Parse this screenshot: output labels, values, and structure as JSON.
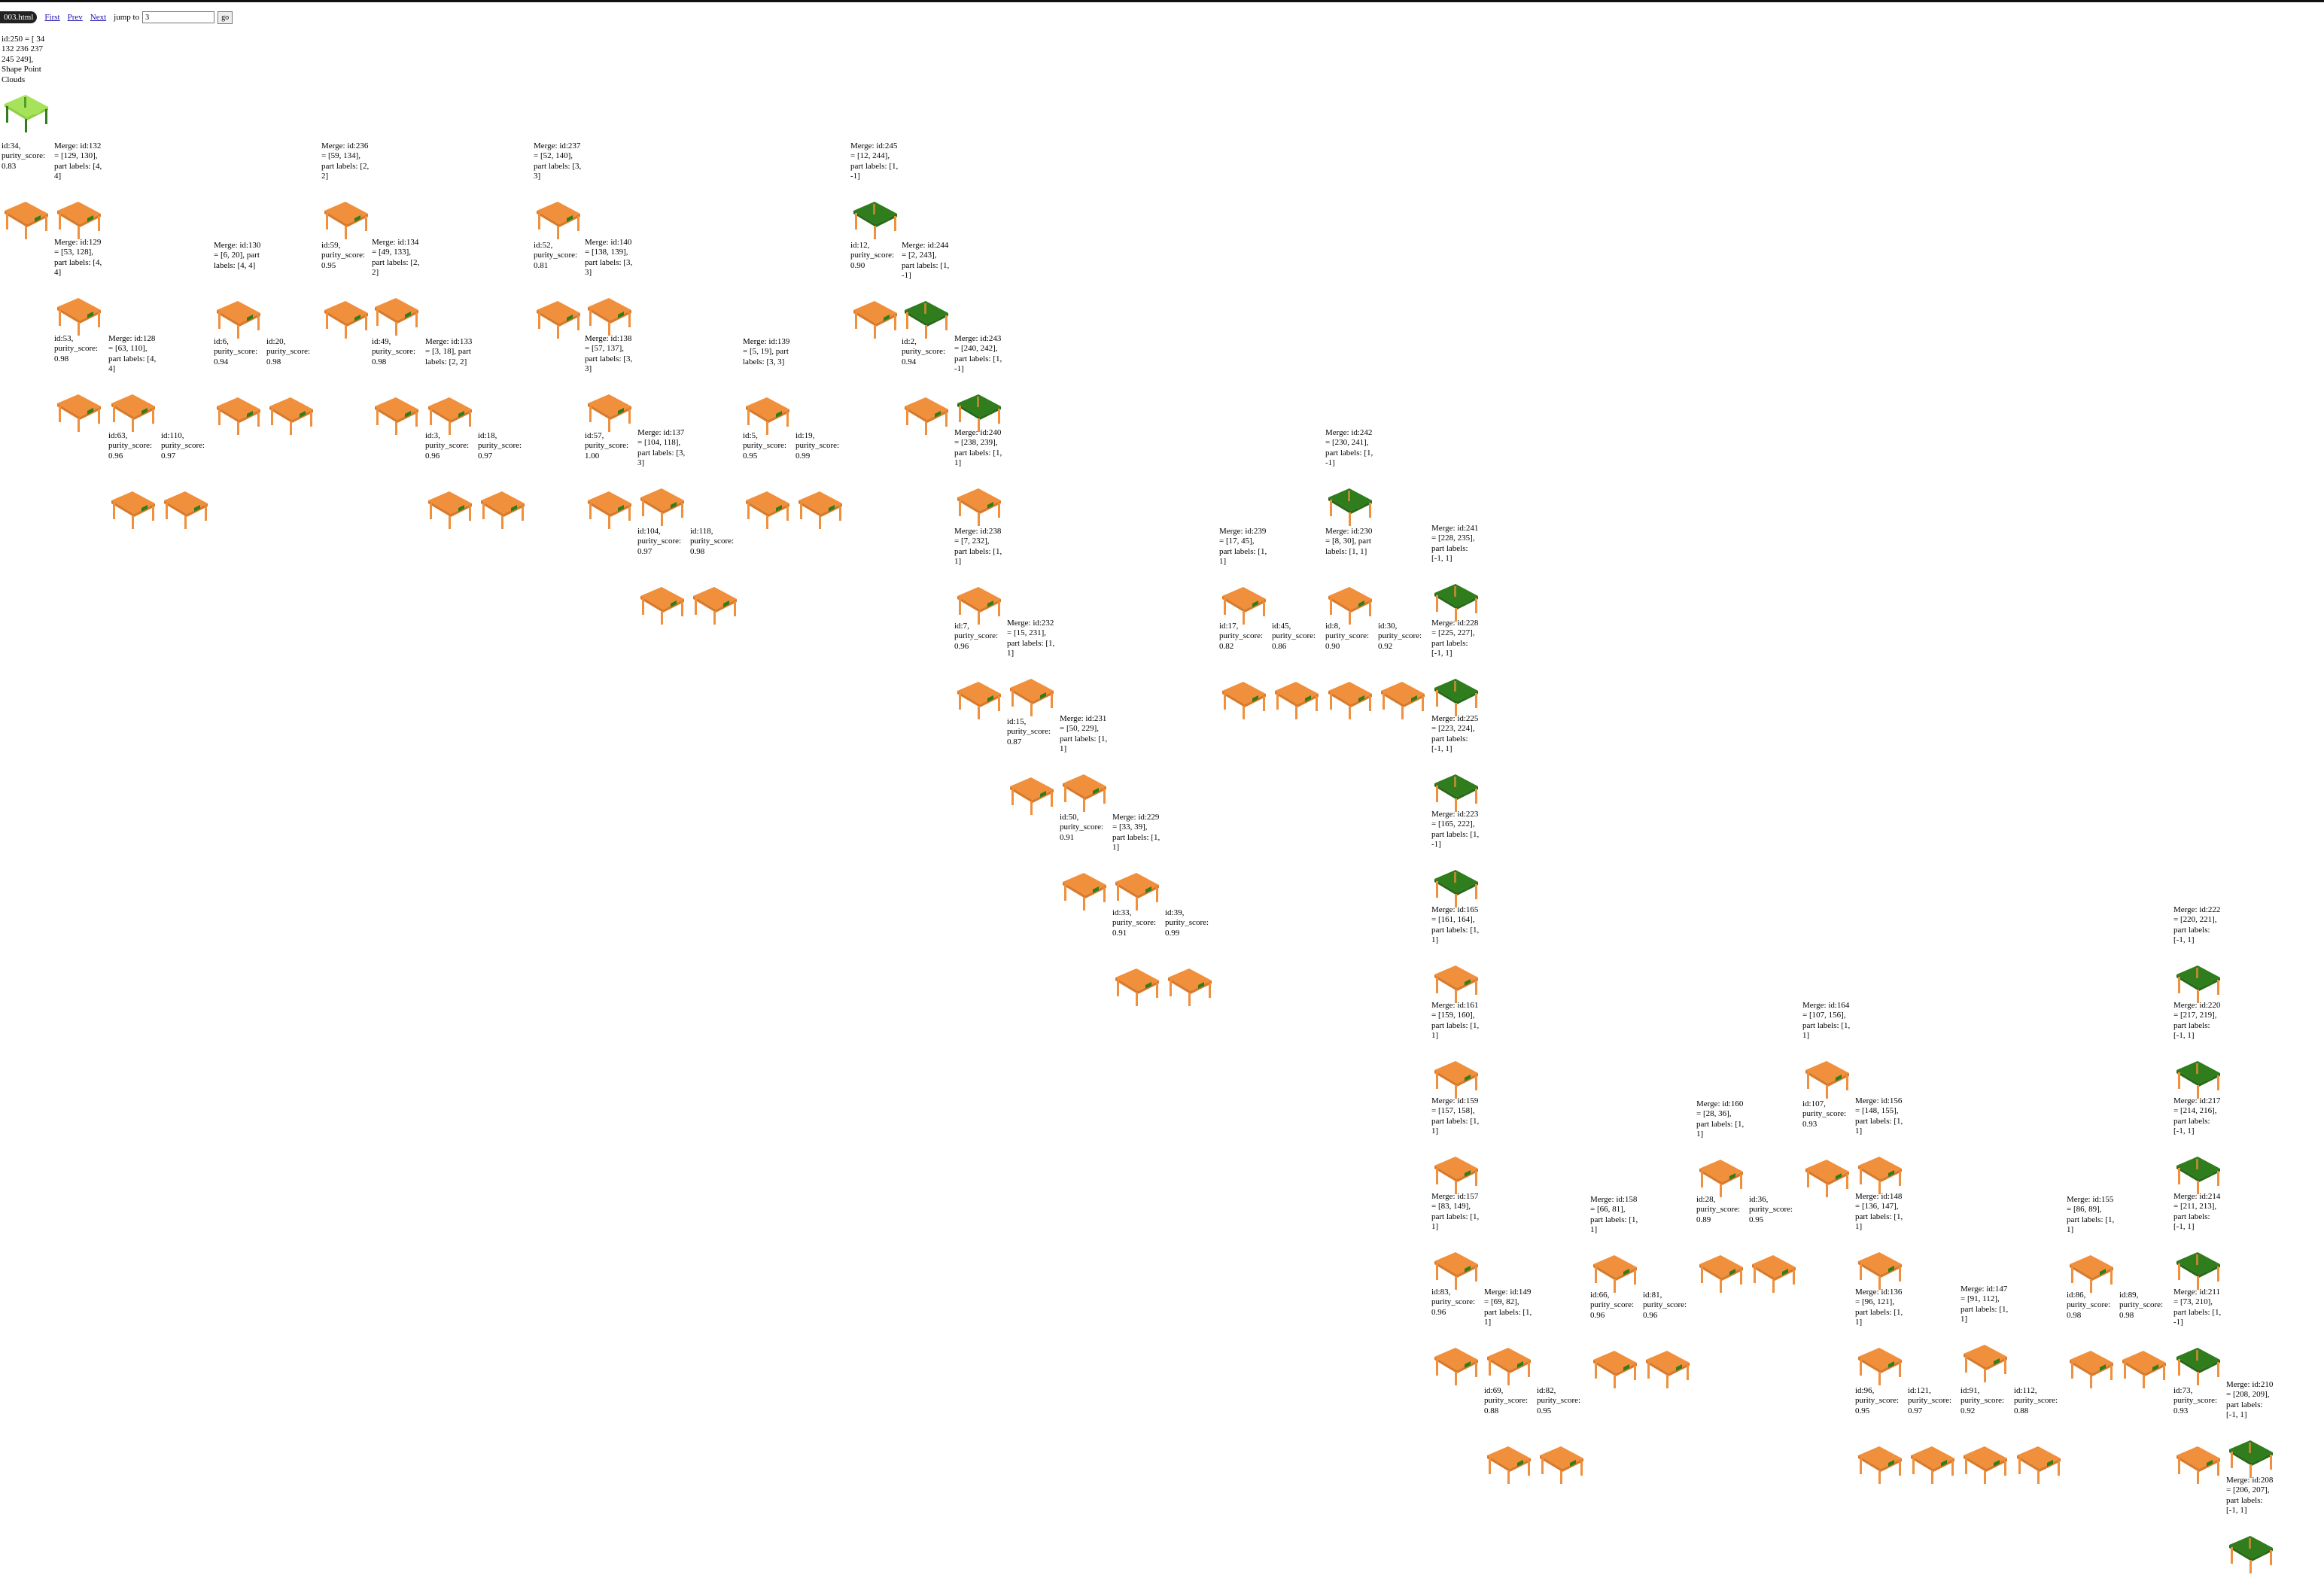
{
  "nav": {
    "file_name": "003.html",
    "first_label": "First",
    "prev_label": "Prev",
    "next_label": "Next",
    "jump_label": "jump to",
    "jump_value": "3",
    "go_label": "go"
  },
  "colors": {
    "orange": "#f0903c",
    "green": "#2f7d1d",
    "lime": "#a6e35a",
    "nav_link": "#1a0dab"
  },
  "nodes": [
    {
      "label": "id:250 = [ 34 132 236 237 245 249], Shape Point Clouds",
      "style": "lime"
    },
    {
      "label": "id:34, purity_score: 0.83",
      "style": "orange"
    },
    {
      "label": "Merge: id:132 = [129, 130], part labels: [4, 4]",
      "style": "orange"
    },
    {
      "label": "Merge: id:236 = [59, 134], part labels: [2, 2]",
      "style": "orange"
    },
    {
      "label": "Merge: id:237 = [52, 140], part labels: [3, 3]",
      "style": "orange"
    },
    {
      "label": "Merge: id:245 = [12, 244], part labels: [1, -1]",
      "style": "green"
    },
    {
      "label": "Merge: id:129 = [53, 128], part labels: [4, 4]",
      "style": "orange"
    },
    {
      "label": "Merge: id:130 = [6, 20], part labels: [4, 4]",
      "style": "orange"
    },
    {
      "label": "id:59, purity_score: 0.95",
      "style": "orange"
    },
    {
      "label": "Merge: id:134 = [49, 133], part labels: [2, 2]",
      "style": "orange"
    },
    {
      "label": "id:52, purity_score: 0.81",
      "style": "orange"
    },
    {
      "label": "Merge: id:140 = [138, 139], part labels: [3, 3]",
      "style": "orange"
    },
    {
      "label": "id:12, purity_score: 0.90",
      "style": "orange"
    },
    {
      "label": "Merge: id:244 = [2, 243], part labels: [1, -1]",
      "style": "green"
    },
    {
      "label": "id:53, purity_score: 0.98",
      "style": "orange"
    },
    {
      "label": "Merge: id:128 = [63, 110], part labels: [4, 4]",
      "style": "orange"
    },
    {
      "label": "id:6, purity_score: 0.94",
      "style": "orange"
    },
    {
      "label": "id:20, purity_score: 0.98",
      "style": "orange"
    },
    {
      "label": "id:49, purity_score: 0.98",
      "style": "orange"
    },
    {
      "label": "Merge: id:133 = [3, 18], part labels: [2, 2]",
      "style": "orange"
    },
    {
      "label": "Merge: id:138 = [57, 137], part labels: [3, 3]",
      "style": "orange"
    },
    {
      "label": "Merge: id:139 = [5, 19], part labels: [3, 3]",
      "style": "orange"
    },
    {
      "label": "id:2, purity_score: 0.94",
      "style": "orange"
    },
    {
      "label": "Merge: id:243 = [240, 242], part labels: [1, -1]",
      "style": "green"
    },
    {
      "label": "id:63, purity_score: 0.96",
      "style": "orange"
    },
    {
      "label": "id:110, purity_score: 0.97",
      "style": "orange"
    },
    {
      "label": "id:3, purity_score: 0.96",
      "style": "orange"
    },
    {
      "label": "id:18, purity_score: 0.97",
      "style": "orange"
    },
    {
      "label": "id:57, purity_score: 1.00",
      "style": "orange"
    },
    {
      "label": "Merge: id:137 = [104, 118], part labels: [3, 3]",
      "style": "orange"
    },
    {
      "label": "id:5, purity_score: 0.95",
      "style": "orange"
    },
    {
      "label": "id:19, purity_score: 0.99",
      "style": "orange"
    },
    {
      "label": "Merge: id:240 = [238, 239], part labels: [1, 1]",
      "style": "orange"
    },
    {
      "label": "Merge: id:242 = [230, 241], part labels: [1, -1]",
      "style": "green"
    },
    {
      "label": "id:104, purity_score: 0.97",
      "style": "orange"
    },
    {
      "label": "id:118, purity_score: 0.98",
      "style": "orange"
    },
    {
      "label": "Merge: id:238 = [7, 232], part labels: [1, 1]",
      "style": "orange"
    },
    {
      "label": "Merge: id:239 = [17, 45], part labels: [1, 1]",
      "style": "orange"
    },
    {
      "label": "Merge: id:230 = [8, 30], part labels: [1, 1]",
      "style": "orange"
    },
    {
      "label": "Merge: id:241 = [228, 235], part labels: [-1, 1]",
      "style": "green"
    },
    {
      "label": "id:7, purity_score: 0.96",
      "style": "orange"
    },
    {
      "label": "Merge: id:232 = [15, 231], part labels: [1, 1]",
      "style": "orange"
    },
    {
      "label": "id:17, purity_score: 0.82",
      "style": "orange"
    },
    {
      "label": "id:45, purity_score: 0.86",
      "style": "orange"
    },
    {
      "label": "id:8, purity_score: 0.90",
      "style": "orange"
    },
    {
      "label": "id:30, purity_score: 0.92",
      "style": "orange"
    },
    {
      "label": "Merge: id:228 = [225, 227], part labels: [-1, 1]",
      "style": "green"
    },
    {
      "label": "id:15, purity_score: 0.87",
      "style": "orange"
    },
    {
      "label": "Merge: id:231 = [50, 229], part labels: [1, 1]",
      "style": "orange"
    },
    {
      "label": "Merge: id:225 = [223, 224], part labels: [-1, 1]",
      "style": "green"
    },
    {
      "label": "id:50, purity_score: 0.91",
      "style": "orange"
    },
    {
      "label": "Merge: id:229 = [33, 39], part labels: [1, 1]",
      "style": "orange"
    },
    {
      "label": "Merge: id:223 = [165, 222], part labels: [1, -1]",
      "style": "green"
    },
    {
      "label": "id:33, purity_score: 0.91",
      "style": "orange"
    },
    {
      "label": "id:39, purity_score: 0.99",
      "style": "orange"
    },
    {
      "label": "Merge: id:165 = [161, 164], part labels: [1, 1]",
      "style": "orange"
    },
    {
      "label": "Merge: id:222 = [220, 221], part labels: [-1, 1]",
      "style": "green"
    },
    {
      "label": "Merge: id:161 = [159, 160], part labels: [1, 1]",
      "style": "orange"
    },
    {
      "label": "Merge: id:164 = [107, 156], part labels: [1, 1]",
      "style": "orange"
    },
    {
      "label": "Merge: id:220 = [217, 219], part labels: [-1, 1]",
      "style": "green"
    },
    {
      "label": "Merge: id:159 = [157, 158], part labels: [1, 1]",
      "style": "orange"
    },
    {
      "label": "Merge: id:160 = [28, 36], part labels: [1, 1]",
      "style": "orange"
    },
    {
      "label": "id:107, purity_score: 0.93",
      "style": "orange"
    },
    {
      "label": "Merge: id:156 = [148, 155], part labels: [1, 1]",
      "style": "orange"
    },
    {
      "label": "Merge: id:217 = [214, 216], part labels: [-1, 1]",
      "style": "green"
    },
    {
      "label": "Merge: id:157 = [83, 149], part labels: [1, 1]",
      "style": "orange"
    },
    {
      "label": "Merge: id:158 = [66, 81], part labels: [1, 1]",
      "style": "orange"
    },
    {
      "label": "id:28, purity_score: 0.89",
      "style": "orange"
    },
    {
      "label": "id:36, purity_score: 0.95",
      "style": "orange"
    },
    {
      "label": "Merge: id:148 = [136, 147], part labels: [1, 1]",
      "style": "orange"
    },
    {
      "label": "Merge: id:155 = [86, 89], part labels: [1, 1]",
      "style": "orange"
    },
    {
      "label": "Merge: id:214 = [211, 213], part labels: [-1, 1]",
      "style": "green"
    },
    {
      "label": "id:83, purity_score: 0.96",
      "style": "orange"
    },
    {
      "label": "Merge: id:149 = [69, 82], part labels: [1, 1]",
      "style": "orange"
    },
    {
      "label": "id:66, purity_score: 0.96",
      "style": "orange"
    },
    {
      "label": "id:81, purity_score: 0.96",
      "style": "orange"
    },
    {
      "label": "Merge: id:136 = [96, 121], part labels: [1, 1]",
      "style": "orange"
    },
    {
      "label": "Merge: id:147 = [91, 112], part labels: [1, 1]",
      "style": "orange"
    },
    {
      "label": "id:86, purity_score: 0.98",
      "style": "orange"
    },
    {
      "label": "id:89, purity_score: 0.98",
      "style": "orange"
    },
    {
      "label": "Merge: id:211 = [73, 210], part labels: [1, -1]",
      "style": "green"
    },
    {
      "label": "id:69, purity_score: 0.88",
      "style": "orange"
    },
    {
      "label": "id:82, purity_score: 0.95",
      "style": "orange"
    },
    {
      "label": "id:96, purity_score: 0.95",
      "style": "orange"
    },
    {
      "label": "id:121, purity_score: 0.97",
      "style": "orange"
    },
    {
      "label": "id:91, purity_score: 0.92",
      "style": "orange"
    },
    {
      "label": "id:112, purity_score: 0.88",
      "style": "orange"
    },
    {
      "label": "id:73, purity_score: 0.93",
      "style": "orange"
    },
    {
      "label": "Merge: id:210 = [208, 209], part labels: [-1, 1]",
      "style": "green"
    },
    {
      "label": "Merge: id:208 = [206, 207], part labels: [-1, 1]",
      "style": "green"
    }
  ]
}
